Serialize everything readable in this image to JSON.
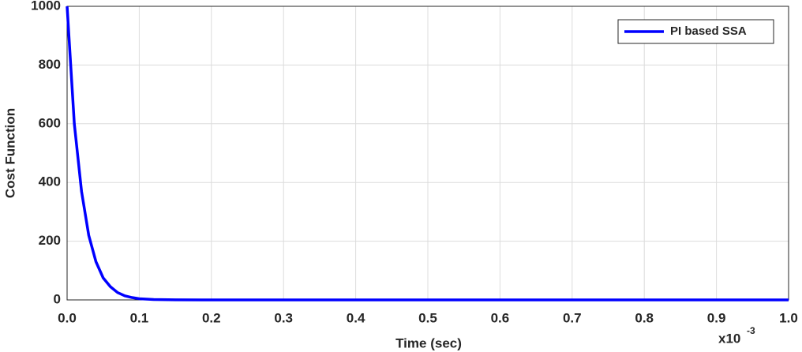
{
  "chart_data": {
    "type": "line",
    "x_label": "Time (sec)",
    "y_label": "Cost Function",
    "x_multiplier": "x10",
    "x_multiplier_exponent": "-3",
    "x": [
      0,
      0.01,
      0.02,
      0.03,
      0.04,
      0.05,
      0.06,
      0.07,
      0.08,
      0.09,
      0.1,
      0.12,
      0.15,
      0.2,
      0.3,
      0.4,
      0.5,
      0.6,
      0.7,
      0.8,
      0.9,
      1.0
    ],
    "series": [
      {
        "name": "PI based SSA",
        "color": "#0000ff",
        "values": [
          1000,
          600,
          370,
          220,
          130,
          75,
          45,
          25,
          14,
          8,
          4,
          1.5,
          0.3,
          0,
          0,
          0,
          0,
          0,
          0,
          0,
          0,
          0
        ]
      }
    ],
    "xlim": [
      0,
      1.0
    ],
    "xticks": [
      {
        "value": 0,
        "label": "0.0"
      },
      0.1,
      0.2,
      0.3,
      0.4,
      0.5,
      0.6,
      0.7,
      0.8,
      0.9,
      {
        "value": 1.0,
        "label": "1.0"
      }
    ],
    "ylim": [
      0,
      1000
    ],
    "yticks": [
      0,
      200,
      400,
      600,
      800,
      1000
    ],
    "grid": true,
    "legend": "upper-right"
  }
}
